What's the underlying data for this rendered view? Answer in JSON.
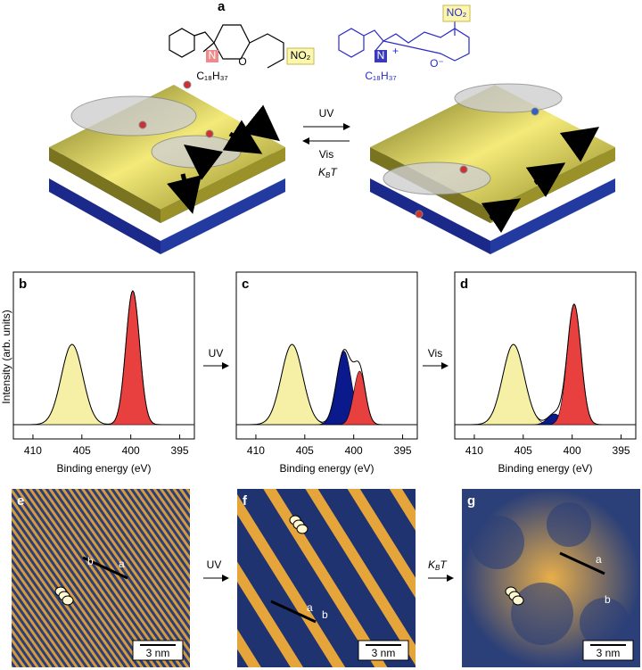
{
  "panel_a": {
    "label": "a",
    "spiropyran": {
      "n": "N",
      "o": "O",
      "no2": "NO₂",
      "chain": "C₁₈H₃₇"
    },
    "merocyanine": {
      "n": "N",
      "charge": "+",
      "o": "O⁻",
      "no2": "NO₂",
      "chain": "C₁₈H₃₇"
    },
    "forward": "UV",
    "back": "Vis",
    "thermal": {
      "main": "K",
      "sub": "B",
      "rest": "T"
    }
  },
  "xps": {
    "y_label": "Intensity (arb. units)",
    "steps": [
      "UV",
      "Vis"
    ],
    "panels": [
      {
        "label": "b",
        "x_label": "Binding energy (eV)",
        "xticks": [
          410,
          405,
          400,
          395
        ],
        "peaks": [
          {
            "center": 406,
            "height": 0.6,
            "width": 1.1,
            "color": "#f5f0a6"
          },
          {
            "center": 399.8,
            "height": 1.0,
            "width": 0.7,
            "color": "#e8403f"
          }
        ]
      },
      {
        "label": "c",
        "x_label": "Binding energy (eV)",
        "xticks": [
          410,
          405,
          400,
          395
        ],
        "peaks": [
          {
            "center": 406.3,
            "height": 0.6,
            "width": 1.1,
            "color": "#f5f0a6"
          },
          {
            "center": 401.0,
            "height": 0.55,
            "width": 0.75,
            "color": "#0a1a8c"
          },
          {
            "center": 399.4,
            "height": 0.4,
            "width": 0.6,
            "color": "#e8403f"
          }
        ]
      },
      {
        "label": "d",
        "x_label": "Binding energy (eV)",
        "xticks": [
          410,
          405,
          400,
          395
        ],
        "peaks": [
          {
            "center": 406,
            "height": 0.6,
            "width": 1.1,
            "color": "#f5f0a6"
          },
          {
            "center": 401.8,
            "height": 0.08,
            "width": 0.7,
            "color": "#0a1a8c"
          },
          {
            "center": 399.8,
            "height": 0.9,
            "width": 0.7,
            "color": "#e8403f"
          }
        ]
      }
    ]
  },
  "stm": {
    "steps": [
      "UV",
      {
        "main": "K",
        "sub": "B",
        "rest": "T"
      }
    ],
    "panels": [
      {
        "label": "e",
        "scale_bar": "3 nm",
        "lattice": [
          "a",
          "b"
        ]
      },
      {
        "label": "f",
        "scale_bar": "3 nm",
        "lattice": [
          "a",
          "b"
        ]
      },
      {
        "label": "g",
        "scale_bar": "3 nm",
        "lattice": [
          "a",
          "b"
        ]
      }
    ]
  }
}
